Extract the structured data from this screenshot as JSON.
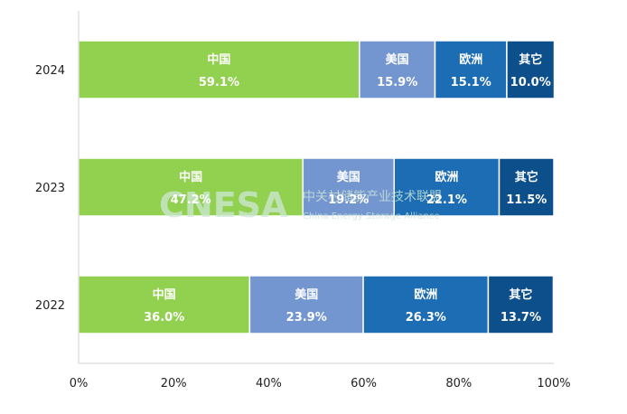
{
  "chart_data": {
    "type": "bar",
    "orientation": "horizontal",
    "stacked": "percent",
    "categories": [
      "2024",
      "2023",
      "2022"
    ],
    "series": [
      {
        "name": "中国",
        "values": [
          59.1,
          47.2,
          36.0
        ],
        "labels": [
          "59.1%",
          "47.2%",
          "36.0%"
        ],
        "color": "#92d050"
      },
      {
        "name": "美国",
        "values": [
          15.9,
          19.2,
          23.9
        ],
        "labels": [
          "15.9%",
          "19.2%",
          "23.9%"
        ],
        "color": "#7496d0"
      },
      {
        "name": "欧洲",
        "values": [
          15.1,
          22.1,
          26.3
        ],
        "labels": [
          "15.1%",
          "22.1%",
          "26.3%"
        ],
        "color": "#1d6db5"
      },
      {
        "name": "其它",
        "values": [
          10.0,
          11.5,
          13.7
        ],
        "labels": [
          "10.0%",
          "11.5%",
          "13.7%"
        ],
        "color": "#0d4f8b"
      }
    ],
    "xlim": [
      0,
      100
    ],
    "xticks": [
      "0%",
      "20%",
      "40%",
      "60%",
      "80%",
      "100%"
    ],
    "grid": false,
    "legend": "none"
  },
  "watermark": {
    "logo_text": "CNESA",
    "cn_text": "中关村储能产业技术联盟",
    "en_text": "China Energy Storage Alliance"
  }
}
